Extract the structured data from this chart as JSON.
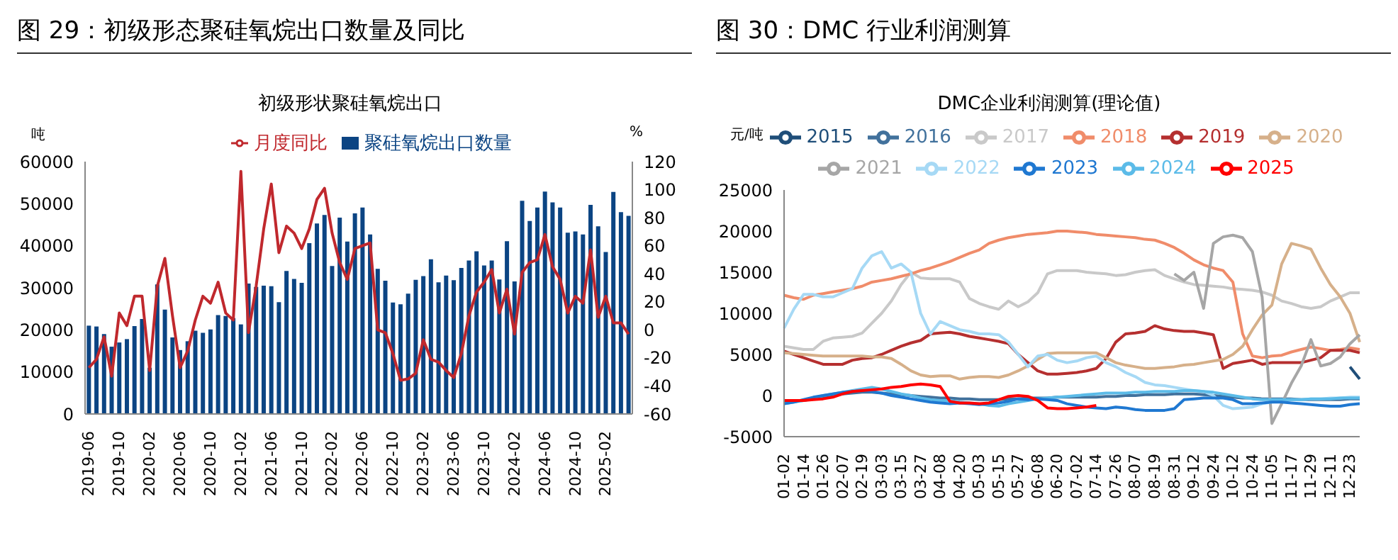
{
  "chart_data": [
    {
      "type": "bar",
      "title": "图 29：初级形态聚硅氧烷出口数量及同比",
      "subtitle": "初级形状聚硅氧烷出口",
      "ylabel": "吨",
      "y2label": "%",
      "legend": "top",
      "categories": [
        "2019-06",
        null,
        null,
        null,
        "2019-10",
        null,
        null,
        null,
        "2020-02",
        null,
        null,
        null,
        "2020-06",
        null,
        null,
        null,
        "2020-10",
        null,
        null,
        null,
        "2021-02",
        null,
        null,
        null,
        "2021-06",
        null,
        null,
        null,
        "2021-10",
        null,
        null,
        null,
        "2022-02",
        null,
        null,
        null,
        "2022-06",
        null,
        null,
        null,
        "2022-10",
        null,
        null,
        null,
        "2023-02",
        null,
        null,
        null,
        "2023-06",
        null,
        null,
        null,
        "2023-10",
        null,
        null,
        null,
        "2024-02",
        null,
        null,
        null,
        "2024-06",
        null,
        null,
        null,
        "2024-10",
        null,
        null,
        null,
        "2025-02",
        null,
        null,
        null
      ],
      "ylim": [
        0,
        60000
      ],
      "yticks": [
        0,
        10000,
        20000,
        30000,
        40000,
        50000,
        60000
      ],
      "y2lim": [
        -60,
        120
      ],
      "y2ticks": [
        -60,
        -40,
        -20,
        0,
        20,
        40,
        60,
        80,
        100,
        120
      ],
      "series": [
        {
          "name": "聚硅氧烷出口数量",
          "color": "#0b4483",
          "values": [
            21000,
            20800,
            19000,
            16000,
            17000,
            17800,
            20900,
            22600,
            11000,
            30800,
            24800,
            18200,
            15200,
            17300,
            19800,
            19300,
            20100,
            23500,
            23300,
            22800,
            21300,
            31000,
            30200,
            30500,
            30400,
            26600,
            34000,
            32100,
            31200,
            40600,
            45300,
            47300,
            35200,
            46700,
            41000,
            47700,
            49100,
            42700,
            34500,
            31700,
            26500,
            26100,
            28600,
            31900,
            32800,
            36800,
            31300,
            32900,
            31800,
            34700,
            36500,
            38700,
            35300,
            36500,
            32000,
            41100,
            31500,
            50700,
            45900,
            49100,
            52900,
            50300,
            49100,
            43100,
            43400,
            42700,
            49700,
            44600,
            38500,
            52800,
            48000,
            47100
          ]
        },
        {
          "name": "月度同比",
          "type": "line",
          "axis": "y2",
          "color": "#c0282d",
          "values": [
            -27,
            -21,
            -5,
            -33,
            12,
            3,
            24,
            24,
            -29,
            31,
            51,
            10,
            -27,
            -15,
            7,
            24,
            19,
            34,
            12,
            7,
            113,
            -2,
            31,
            72,
            104,
            55,
            74,
            69,
            58,
            72,
            93,
            101,
            69,
            48,
            36,
            58,
            60,
            62,
            0,
            -2,
            -17,
            -36,
            -35,
            -31,
            -7,
            -21,
            -23,
            -29,
            -34,
            -17,
            10,
            27,
            34,
            43,
            12,
            29,
            -3,
            41,
            48,
            50,
            68,
            45,
            36,
            12,
            24,
            19,
            57,
            9,
            24,
            5,
            5,
            -3
          ]
        }
      ]
    },
    {
      "type": "line",
      "title": "图 30：DMC 行业利润测算",
      "subtitle": "DMC企业利润测算(理论值)",
      "ylabel": "元/吨",
      "legend": "top",
      "categories": [
        "01-02",
        null,
        "01-14",
        null,
        "01-26",
        null,
        "02-07",
        null,
        "02-19",
        null,
        "03-03",
        null,
        "03-15",
        null,
        "03-27",
        null,
        "04-08",
        null,
        "04-20",
        null,
        "05-03",
        null,
        "05-15",
        null,
        "05-27",
        null,
        "06-08",
        null,
        "06-20",
        null,
        "07-02",
        null,
        "07-14",
        null,
        "07-26",
        null,
        "08-07",
        null,
        "08-19",
        null,
        "08-31",
        null,
        "09-12",
        null,
        "09-24",
        null,
        "10-12",
        null,
        "10-24",
        null,
        "11-05",
        null,
        "11-17",
        null,
        "11-29",
        null,
        "12-11",
        null,
        "12-23",
        null
      ],
      "ylim": [
        -5000,
        25000
      ],
      "yticks": [
        -5000,
        0,
        5000,
        10000,
        15000,
        20000,
        25000
      ],
      "series": [
        {
          "name": "2016",
          "color": "#41719c",
          "values": [
            -800,
            -700,
            -600,
            -400,
            -200,
            0,
            200,
            300,
            400,
            400,
            300,
            200,
            100,
            0,
            -100,
            -200,
            -300,
            -300,
            -400,
            -400,
            -500,
            -500,
            -500,
            -400,
            -400,
            -300,
            -300,
            -300,
            -200,
            -200,
            -200,
            -200,
            -200,
            -100,
            -100,
            0,
            0,
            100,
            100,
            100,
            200,
            200,
            200,
            100,
            0,
            -100,
            -200,
            -300,
            -300,
            -400,
            -400,
            -400,
            -400,
            -500,
            -500,
            -500,
            -500,
            -500,
            -400,
            -400
          ]
        },
        {
          "name": "2017",
          "color": "#c9c9c9",
          "values": [
            6000,
            5800,
            5600,
            5600,
            6600,
            7000,
            7100,
            7200,
            7600,
            8800,
            10000,
            11500,
            13500,
            15000,
            14300,
            14200,
            14200,
            14200,
            13800,
            11800,
            11200,
            10800,
            10500,
            11500,
            10800,
            11400,
            12500,
            14800,
            15200,
            15200,
            15200,
            15000,
            14900,
            14800,
            14600,
            14700,
            15000,
            15200,
            15300,
            14600,
            14200,
            13800,
            13500,
            13400,
            13300,
            13200,
            13000,
            12900,
            12800,
            12600,
            12200,
            11500,
            11200,
            10800,
            10600,
            10800,
            11500,
            12000,
            12500,
            12500
          ]
        },
        {
          "name": "2018",
          "color": "#f08c6a",
          "values": [
            12200,
            11900,
            11700,
            12200,
            12400,
            12600,
            12800,
            13000,
            13300,
            13800,
            14000,
            14200,
            14500,
            14800,
            15200,
            15500,
            15900,
            16300,
            16800,
            17300,
            17700,
            18500,
            18900,
            19200,
            19400,
            19600,
            19700,
            19800,
            20000,
            20000,
            19900,
            19800,
            19600,
            19500,
            19400,
            19300,
            19200,
            19000,
            18900,
            18500,
            18000,
            17300,
            16500,
            15900,
            15500,
            15200,
            13800,
            7500,
            4800,
            4600,
            4800,
            4900,
            5300,
            5600,
            5900,
            5700,
            5500,
            5600,
            5800,
            5600
          ]
        },
        {
          "name": "2019",
          "color": "#b52f2f",
          "values": [
            5400,
            5000,
            4600,
            4200,
            3800,
            3800,
            3800,
            4300,
            4500,
            4600,
            5000,
            5500,
            6000,
            6400,
            6700,
            7500,
            7600,
            7700,
            7500,
            7200,
            7000,
            6800,
            6600,
            6300,
            5000,
            4000,
            3000,
            2600,
            2600,
            2700,
            2800,
            3000,
            3300,
            4500,
            6500,
            7500,
            7600,
            7800,
            8500,
            8100,
            7900,
            7800,
            7800,
            7600,
            7400,
            3300,
            3900,
            4100,
            4300,
            3800,
            4000,
            4000,
            4000,
            4000,
            4300,
            4600,
            5500,
            5500,
            5500,
            5200
          ]
        },
        {
          "name": "2020",
          "color": "#d6b08a",
          "values": [
            5200,
            5100,
            5000,
            4900,
            4800,
            4800,
            4800,
            4800,
            4800,
            4700,
            4700,
            4500,
            3800,
            3000,
            2500,
            2300,
            2400,
            2400,
            2000,
            2200,
            2300,
            2300,
            2200,
            2500,
            3000,
            3600,
            4400,
            5100,
            5200,
            5200,
            5200,
            5200,
            5200,
            4600,
            4000,
            3700,
            3500,
            3300,
            3300,
            3400,
            3500,
            3700,
            3800,
            4000,
            4200,
            4400,
            5000,
            6000,
            8000,
            9800,
            11000,
            16000,
            18500,
            18200,
            17800,
            15500,
            13500,
            12000,
            10000,
            6500
          ]
        },
        {
          "name": "2021",
          "color": "#a6a6a6",
          "values": [
            null,
            null,
            null,
            null,
            null,
            null,
            null,
            null,
            null,
            null,
            null,
            null,
            null,
            null,
            null,
            null,
            null,
            null,
            null,
            null,
            null,
            null,
            null,
            null,
            null,
            null,
            null,
            null,
            null,
            null,
            null,
            null,
            null,
            null,
            null,
            null,
            null,
            null,
            null,
            null,
            14800,
            14000,
            15000,
            10600,
            18500,
            19300,
            19500,
            19200,
            17500,
            12000,
            -3400,
            -1000,
            1500,
            3600,
            6800,
            3600,
            3900,
            4700,
            6300,
            7400
          ]
        },
        {
          "name": "2022",
          "color": "#a6d9f5",
          "values": [
            8200,
            10500,
            12300,
            12300,
            12000,
            12000,
            12500,
            13000,
            15500,
            17000,
            17500,
            15500,
            16000,
            15000,
            10000,
            7500,
            9000,
            8500,
            8000,
            7800,
            7500,
            7500,
            7400,
            6500,
            5000,
            3500,
            4800,
            5000,
            4300,
            4000,
            4200,
            4600,
            4800,
            4000,
            3500,
            2800,
            2300,
            1600,
            1300,
            1200,
            1000,
            800,
            600,
            500,
            0,
            -1200,
            -1600,
            -1500,
            -1400,
            -1000,
            -800,
            -700,
            -500,
            -500,
            -400,
            -400,
            -300,
            -300,
            -200,
            -200
          ]
        },
        {
          "name": "2024",
          "color": "#5bbbe8",
          "values": [
            -1000,
            -800,
            -600,
            -300,
            0,
            200,
            400,
            600,
            800,
            1000,
            800,
            500,
            200,
            0,
            -300,
            -500,
            -600,
            -600,
            -800,
            -900,
            -1000,
            -1200,
            -1300,
            -1000,
            -800,
            -600,
            -400,
            -300,
            -200,
            -100,
            0,
            100,
            200,
            300,
            300,
            300,
            400,
            400,
            500,
            500,
            500,
            600,
            600,
            500,
            400,
            200,
            0,
            -200,
            -400,
            -500,
            -500,
            -500,
            -500,
            -500,
            -400,
            -400,
            -400,
            -300,
            -300,
            -300
          ]
        },
        {
          "name": "2023",
          "color": "#1f78d1",
          "values": [
            -1000,
            -800,
            -500,
            -200,
            0,
            200,
            400,
            500,
            600,
            500,
            300,
            0,
            -200,
            -400,
            -600,
            -800,
            -900,
            -1000,
            -900,
            -1000,
            -1100,
            -1000,
            -900,
            -700,
            -400,
            -500,
            -400,
            -500,
            -600,
            -1000,
            -1200,
            -1400,
            -1500,
            -1600,
            -1400,
            -1500,
            -1700,
            -1800,
            -1800,
            -1800,
            -1600,
            -500,
            -400,
            -300,
            -300,
            -300,
            -500,
            -1000,
            -1000,
            -900,
            -800,
            -800,
            -900,
            -1000,
            -1100,
            -1200,
            -1300,
            -1300,
            -1100,
            -1000
          ]
        },
        {
          "name": "2025",
          "color": "#ff0000",
          "values": [
            -600,
            -600,
            -600,
            -500,
            -400,
            -200,
            200,
            500,
            600,
            700,
            800,
            1000,
            1100,
            1300,
            1400,
            1300,
            1100,
            -700,
            -900,
            -900,
            -1000,
            -900,
            -500,
            -100,
            0,
            -100,
            -600,
            -1500,
            -1600,
            -1600,
            -1500,
            -1400,
            -1200,
            null,
            null,
            null,
            null,
            null,
            null,
            null,
            null,
            null,
            null,
            null,
            null,
            null,
            null,
            null,
            null,
            null,
            null,
            null,
            null,
            null,
            null,
            null,
            null,
            null,
            null,
            null
          ]
        },
        {
          "name": "2015",
          "color": "#1f4e79",
          "values": [
            null,
            null,
            null,
            null,
            null,
            null,
            null,
            null,
            null,
            null,
            null,
            null,
            null,
            null,
            null,
            null,
            null,
            null,
            null,
            null,
            null,
            null,
            null,
            null,
            null,
            null,
            null,
            null,
            null,
            null,
            null,
            null,
            null,
            null,
            null,
            null,
            null,
            null,
            null,
            null,
            null,
            null,
            null,
            null,
            null,
            null,
            null,
            null,
            null,
            null,
            null,
            null,
            null,
            null,
            null,
            null,
            null,
            null,
            3500,
            2000
          ]
        }
      ]
    }
  ]
}
